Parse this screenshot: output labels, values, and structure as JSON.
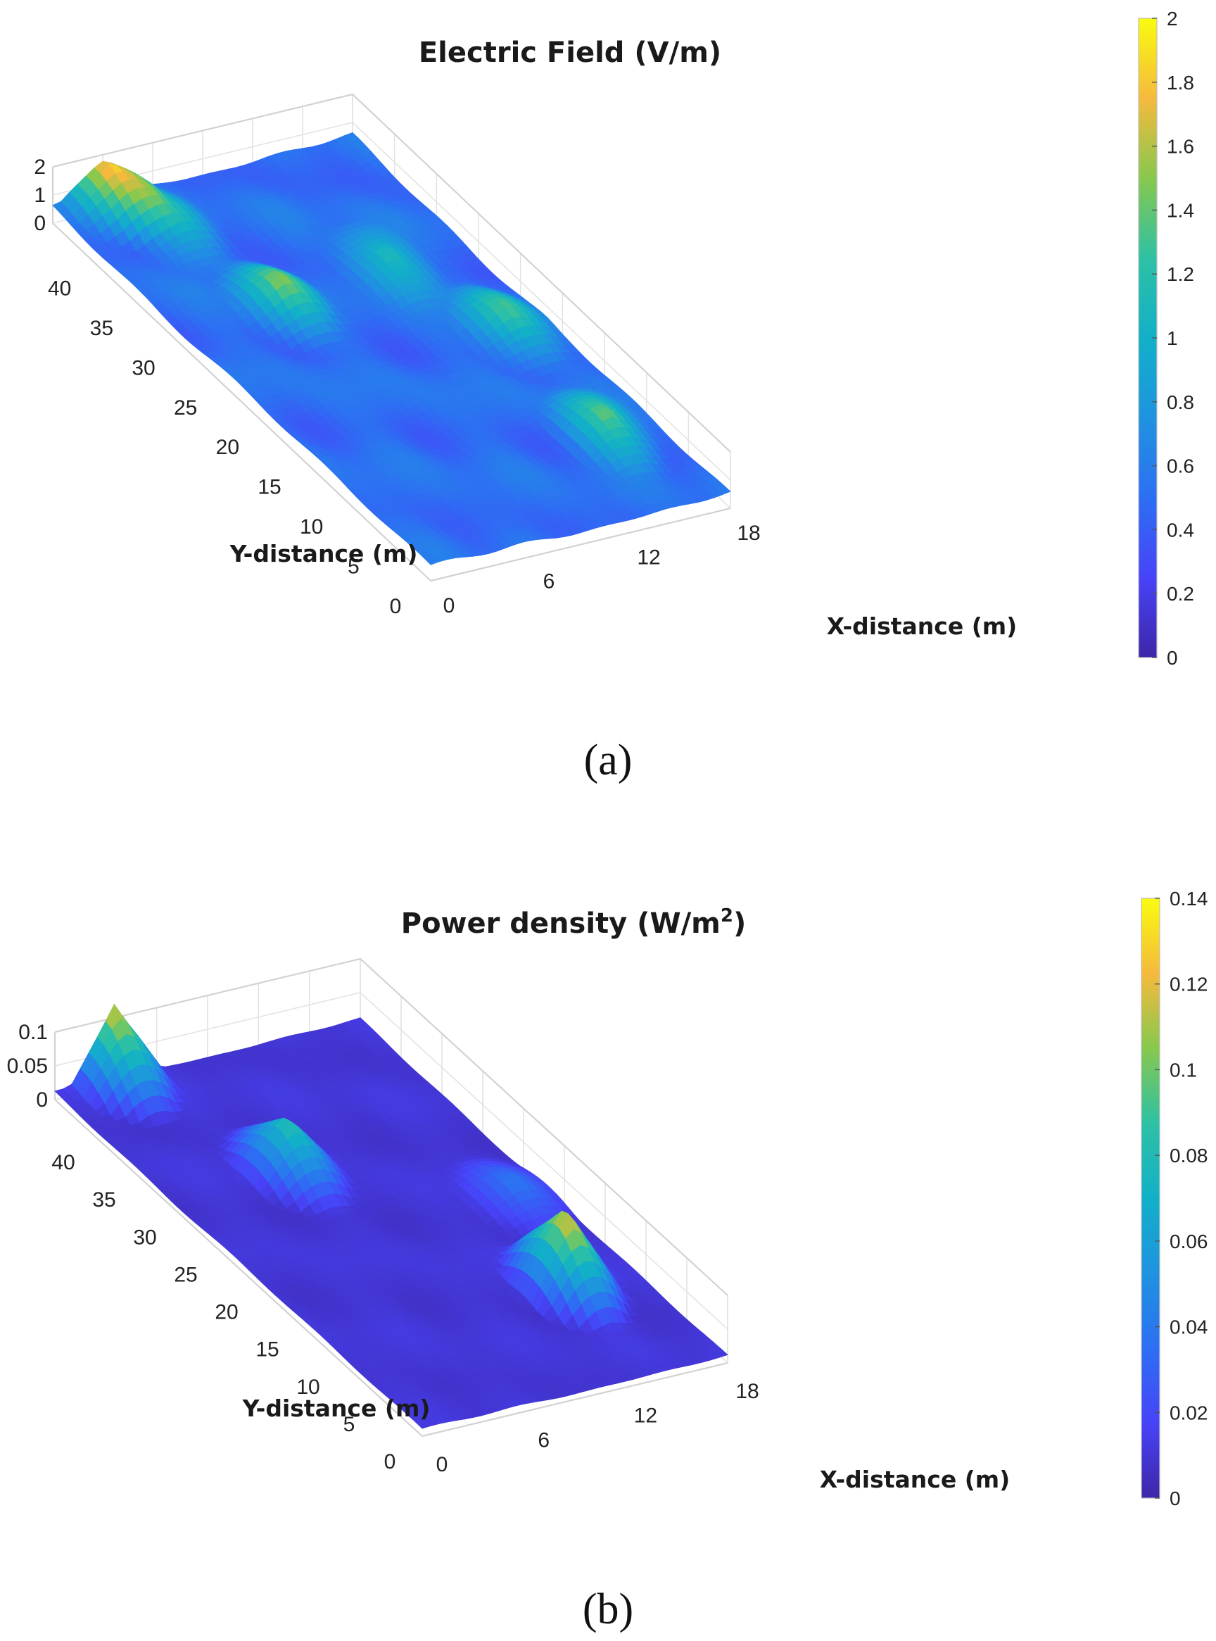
{
  "chart_data": [
    {
      "id": "a",
      "type": "surface",
      "title": "Electric Field (V/m)",
      "caption": "(a)",
      "xlabel": "X-distance (m)",
      "ylabel": "Y-distance (m)",
      "x_ticks": [
        "0",
        "6",
        "12",
        "18"
      ],
      "y_ticks": [
        "0",
        "5",
        "10",
        "15",
        "20",
        "25",
        "30",
        "35",
        "40"
      ],
      "z_ticks": [
        "0",
        "1",
        "2"
      ],
      "xlim": [
        0,
        18
      ],
      "ylim": [
        0,
        45
      ],
      "zlim": [
        0,
        2
      ],
      "colorbar": {
        "min": 0,
        "max": 2,
        "ticks": [
          "0",
          "0.2",
          "0.4",
          "0.6",
          "0.8",
          "1",
          "1.2",
          "1.4",
          "1.6",
          "1.8",
          "2"
        ]
      },
      "baseline": 0.5,
      "peaks": [
        {
          "x": 3.0,
          "y": 44.5,
          "value": 1.9
        },
        {
          "x": 6.0,
          "y": 30.0,
          "value": 1.5
        },
        {
          "x": 13.0,
          "y": 31.0,
          "value": 1.3
        },
        {
          "x": 15.5,
          "y": 22.0,
          "value": 1.4
        },
        {
          "x": 15.0,
          "y": 9.0,
          "value": 1.5
        },
        {
          "x": 4.5,
          "y": 40.0,
          "value": 1.2
        }
      ]
    },
    {
      "id": "b",
      "type": "surface",
      "title": "Power density (W/m",
      "title_sup": "2",
      "title_end": ")",
      "caption": "(b)",
      "xlabel": "X-distance (m)",
      "ylabel": "Y-distance (m)",
      "x_ticks": [
        "0",
        "6",
        "12",
        "18"
      ],
      "y_ticks": [
        "0",
        "5",
        "10",
        "15",
        "20",
        "25",
        "30",
        "35",
        "40"
      ],
      "z_ticks": [
        "0",
        "0.05",
        "0.1"
      ],
      "xlim": [
        0,
        18
      ],
      "ylim": [
        0,
        45
      ],
      "zlim": [
        0,
        0.1
      ],
      "colorbar": {
        "min": 0,
        "max": 0.14,
        "ticks": [
          "0",
          "0.02",
          "0.04",
          "0.06",
          "0.08",
          "0.1",
          "0.12",
          "0.14"
        ]
      },
      "baseline": 0.01,
      "peaks": [
        {
          "x": 3.5,
          "y": 45.0,
          "value": 0.12
        },
        {
          "x": 7.0,
          "y": 31.0,
          "value": 0.085
        },
        {
          "x": 14.0,
          "y": 11.5,
          "value": 0.125
        },
        {
          "x": 16.0,
          "y": 22.0,
          "value": 0.04
        }
      ]
    }
  ]
}
